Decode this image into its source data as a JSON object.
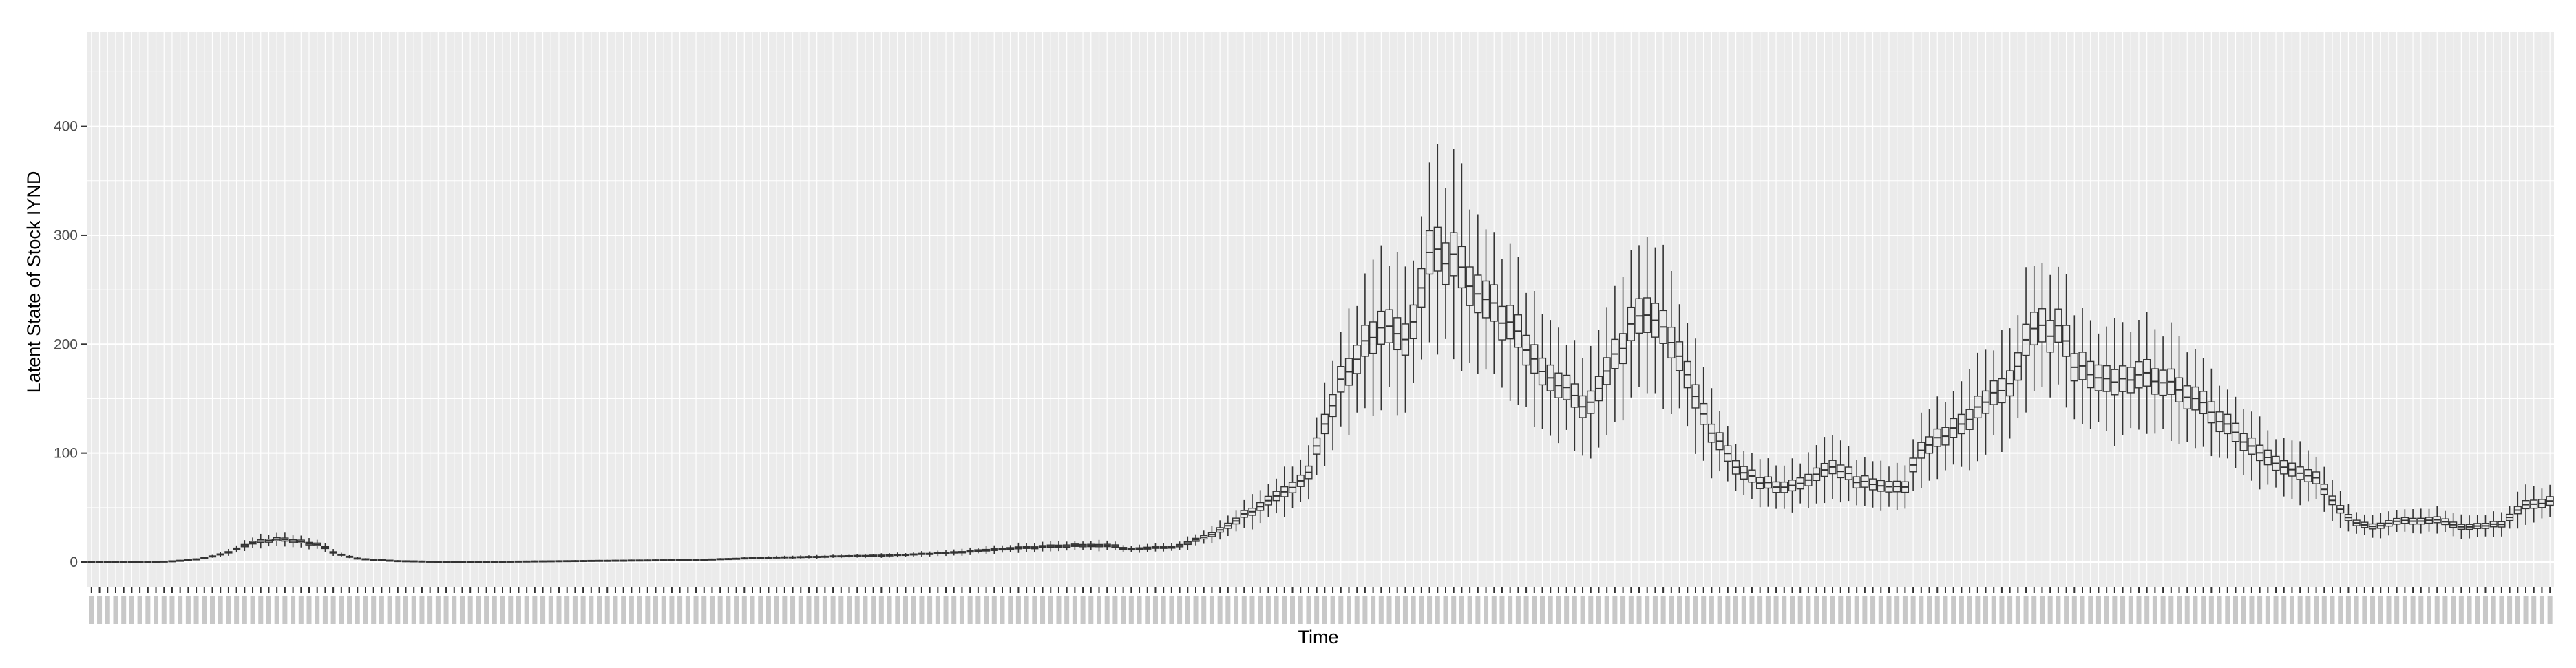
{
  "chart_data": {
    "type": "boxplot",
    "title": "",
    "xlabel": "Time",
    "ylabel": "Latent State of Stock IYND",
    "ylim": [
      -25,
      495
    ],
    "yticks": [
      0,
      100,
      200,
      300,
      400
    ],
    "ytick_labels": [
      "0",
      "100",
      "200",
      "300",
      "400"
    ],
    "n_boxes": 306,
    "x_tick_labels_legible": false,
    "grid": true,
    "background": "#ebebeb",
    "gridline_color": "#ffffff",
    "box_color": "#333333",
    "median_anchors": [
      [
        0,
        0
      ],
      [
        10,
        0
      ],
      [
        14,
        1
      ],
      [
        18,
        3
      ],
      [
        22,
        8
      ],
      [
        24,
        12
      ],
      [
        26,
        17
      ],
      [
        30,
        21
      ],
      [
        34,
        19
      ],
      [
        38,
        15
      ],
      [
        40,
        8
      ],
      [
        44,
        3
      ],
      [
        50,
        1
      ],
      [
        60,
        0
      ],
      [
        70,
        0.5
      ],
      [
        80,
        1
      ],
      [
        90,
        1.5
      ],
      [
        100,
        2
      ],
      [
        110,
        4
      ],
      [
        120,
        5
      ],
      [
        130,
        6
      ],
      [
        140,
        8
      ],
      [
        150,
        12
      ],
      [
        160,
        15
      ],
      [
        168,
        15
      ],
      [
        170,
        12
      ],
      [
        178,
        14
      ],
      [
        184,
        25
      ],
      [
        190,
        45
      ],
      [
        196,
        65
      ],
      [
        200,
        80
      ],
      [
        202,
        120
      ],
      [
        205,
        160
      ],
      [
        210,
        210
      ],
      [
        214,
        220
      ],
      [
        216,
        200
      ],
      [
        218,
        240
      ],
      [
        220,
        280
      ],
      [
        223,
        280
      ],
      [
        228,
        250
      ],
      [
        234,
        210
      ],
      [
        238,
        180
      ],
      [
        244,
        150
      ],
      [
        246,
        140
      ],
      [
        250,
        185
      ],
      [
        254,
        225
      ],
      [
        258,
        215
      ],
      [
        262,
        175
      ],
      [
        266,
        120
      ],
      [
        270,
        90
      ],
      [
        274,
        72
      ],
      [
        278,
        70
      ],
      [
        282,
        76
      ],
      [
        286,
        88
      ],
      [
        288,
        82
      ],
      [
        290,
        75
      ],
      [
        294,
        68
      ],
      [
        298,
        68
      ],
      [
        300,
        100
      ],
      [
        304,
        115
      ],
      [
        308,
        130
      ],
      [
        312,
        150
      ],
      [
        316,
        170
      ],
      [
        318,
        200
      ],
      [
        320,
        215
      ],
      [
        324,
        210
      ],
      [
        326,
        180
      ],
      [
        330,
        172
      ],
      [
        334,
        168
      ],
      [
        338,
        175
      ],
      [
        342,
        160
      ],
      [
        346,
        150
      ],
      [
        350,
        130
      ],
      [
        354,
        110
      ],
      [
        358,
        95
      ],
      [
        362,
        85
      ],
      [
        366,
        75
      ],
      [
        370,
        45
      ],
      [
        372,
        35
      ],
      [
        376,
        33
      ],
      [
        380,
        38
      ],
      [
        386,
        38
      ],
      [
        390,
        32
      ],
      [
        396,
        35
      ],
      [
        400,
        52
      ],
      [
        404,
        55
      ]
    ],
    "spread_rule": "box half-width ≈ 7% of median, whisker half-width ≈ 30% of median"
  }
}
